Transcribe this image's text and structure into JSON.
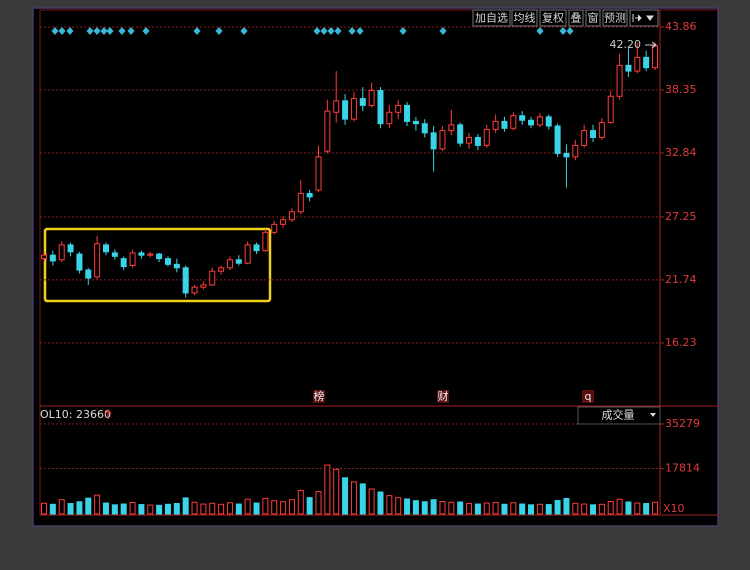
{
  "toolbar": [
    "加自选",
    "均线",
    "复权",
    "叠",
    "窗",
    "预测"
  ],
  "chart_data": [
    {
      "type": "candlestick",
      "ylim": [
        10.8,
        44.47
      ],
      "yticks": [
        16.23,
        21.74,
        27.25,
        32.84,
        38.35,
        43.86
      ],
      "grid": true,
      "up_color": "#ff3b3b",
      "down_color": "#3ad4e8",
      "last_price_label": "42.20",
      "annotations": [
        "榜",
        "财",
        "q"
      ],
      "open": [
        23.6,
        23.9,
        23.5,
        24.8,
        24.0,
        22.6,
        22.0,
        24.8,
        24.1,
        23.6,
        23.0,
        24.1,
        23.9,
        24.0,
        23.6,
        23.1,
        22.8,
        20.6,
        21.1,
        21.3,
        22.5,
        22.8,
        23.5,
        23.2,
        24.8,
        24.3,
        25.9,
        26.6,
        27.0,
        27.7,
        29.3,
        29.6,
        33.0,
        36.4,
        37.4,
        35.8,
        37.6,
        37.0,
        38.3,
        35.4,
        36.4,
        37.0,
        35.6,
        35.4,
        34.6,
        33.2,
        34.8,
        35.3,
        33.7,
        34.2,
        33.5,
        34.9,
        35.6,
        35.0,
        36.1,
        35.7,
        35.3,
        36.0,
        35.2,
        32.8,
        32.5,
        33.5,
        34.8,
        34.2,
        35.5,
        37.8,
        40.5,
        40.0,
        41.2,
        40.3
      ],
      "close": [
        23.9,
        23.4,
        24.8,
        24.2,
        22.6,
        21.9,
        24.9,
        24.2,
        23.8,
        22.9,
        24.1,
        23.9,
        24.0,
        23.6,
        23.1,
        22.8,
        20.6,
        21.1,
        21.3,
        22.5,
        22.8,
        23.5,
        23.2,
        24.8,
        24.3,
        25.9,
        26.6,
        27.0,
        27.7,
        29.3,
        29.0,
        32.5,
        36.5,
        37.4,
        35.8,
        37.6,
        37.0,
        38.3,
        35.4,
        36.4,
        37.0,
        35.6,
        35.4,
        34.6,
        33.2,
        34.8,
        35.3,
        33.7,
        34.2,
        33.5,
        34.9,
        35.6,
        35.0,
        36.1,
        35.7,
        35.3,
        36.0,
        35.2,
        32.8,
        32.5,
        33.5,
        34.8,
        34.2,
        35.5,
        37.8,
        40.5,
        40.0,
        41.2,
        40.3,
        42.2
      ],
      "high": [
        24.2,
        24.3,
        25.1,
        25.0,
        24.2,
        22.8,
        25.6,
        25.0,
        24.4,
        23.8,
        24.4,
        24.3,
        24.2,
        24.1,
        23.8,
        23.6,
        23.0,
        21.3,
        21.6,
        22.8,
        23.0,
        23.8,
        23.9,
        25.1,
        25.0,
        26.2,
        26.9,
        27.3,
        28.0,
        30.5,
        29.6,
        33.5,
        37.5,
        40.0,
        38.0,
        38.2,
        38.6,
        39.0,
        38.6,
        37.0,
        37.5,
        37.3,
        36.0,
        35.8,
        35.2,
        35.2,
        36.6,
        35.5,
        34.6,
        34.5,
        35.3,
        36.2,
        36.0,
        36.4,
        36.5,
        36.0,
        36.3,
        36.2,
        35.4,
        33.6,
        34.0,
        35.3,
        35.3,
        35.9,
        38.3,
        41.5,
        42.0,
        42.5,
        41.8,
        42.5
      ],
      "low": [
        23.3,
        23.0,
        23.3,
        23.8,
        22.3,
        21.3,
        21.8,
        23.9,
        23.5,
        22.6,
        22.8,
        23.6,
        23.7,
        23.3,
        22.9,
        22.4,
        20.2,
        20.4,
        20.9,
        21.2,
        22.2,
        22.6,
        23.0,
        23.1,
        24.0,
        24.2,
        25.7,
        26.3,
        26.8,
        27.5,
        28.6,
        29.4,
        32.8,
        35.5,
        35.3,
        35.6,
        36.5,
        36.8,
        35.0,
        35.0,
        35.8,
        35.2,
        34.8,
        34.2,
        31.2,
        33.0,
        34.4,
        33.4,
        33.2,
        33.1,
        33.3,
        34.6,
        34.7,
        34.8,
        35.3,
        35.0,
        35.1,
        34.9,
        32.5,
        29.8,
        32.2,
        33.3,
        33.8,
        34.0,
        35.4,
        37.5,
        39.5,
        39.8,
        40.0,
        40.1
      ]
    },
    {
      "type": "volume",
      "indicator_label": "OL10: 23660",
      "selector": "成交量",
      "unit_label": "X10",
      "ylim": [
        0,
        35279
      ],
      "yticks": [
        17814,
        35279
      ],
      "values": [
        4200,
        3800,
        5600,
        4100,
        4800,
        6200,
        7400,
        4300,
        3600,
        3900,
        4500,
        3700,
        3500,
        3400,
        3800,
        4100,
        6300,
        4600,
        3900,
        4200,
        3800,
        4400,
        3900,
        5800,
        4300,
        6100,
        5200,
        4800,
        5600,
        9200,
        6400,
        8800,
        19200,
        17500,
        14200,
        12600,
        11800,
        9800,
        8600,
        7200,
        6400,
        5900,
        5200,
        4800,
        5600,
        4900,
        4600,
        4700,
        4100,
        3900,
        4300,
        4500,
        3800,
        4400,
        3900,
        3600,
        3800,
        3700,
        5300,
        6100,
        4200,
        3900,
        3600,
        3800,
        4900,
        5800,
        4700,
        4300,
        4100,
        4600
      ]
    }
  ]
}
